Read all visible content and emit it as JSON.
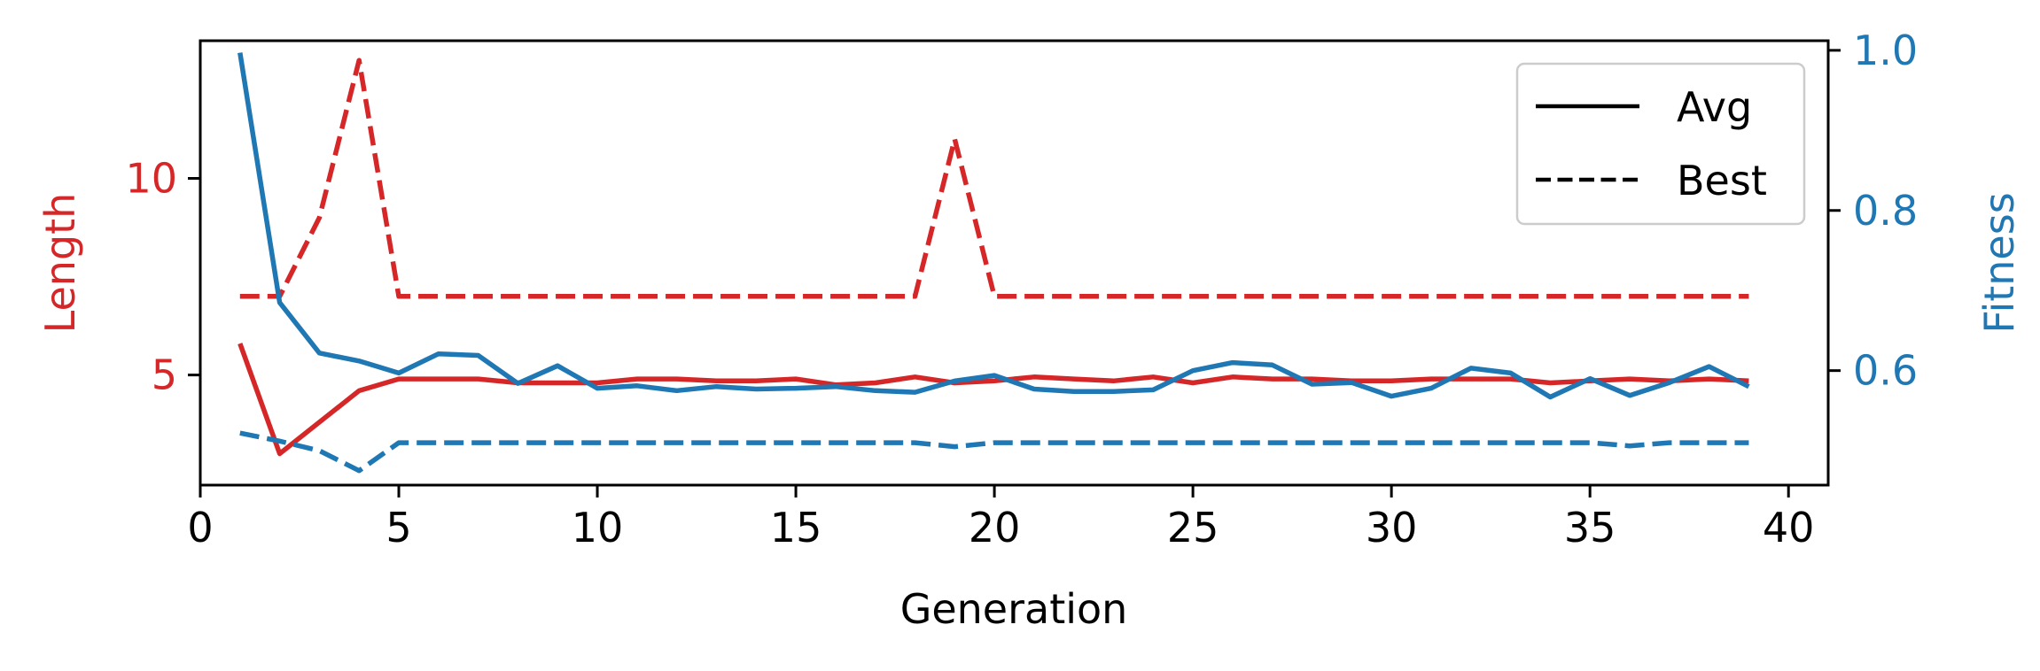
{
  "chart_data": {
    "type": "line",
    "title": "",
    "xlabel": "Generation",
    "ylabel_left": "Length",
    "ylabel_right": "Fitness",
    "xlim": [
      0,
      41
    ],
    "ylim_left": [
      2.2,
      13.5
    ],
    "ylim_right": [
      0.457,
      1.012
    ],
    "xticks": [
      0,
      5,
      10,
      15,
      20,
      25,
      30,
      35,
      40
    ],
    "yticks_left": [
      5,
      10
    ],
    "yticks_right": [
      0.6,
      0.8,
      1.0
    ],
    "ytick_labels_right": [
      "0.6",
      "0.8",
      "1.0"
    ],
    "legend": {
      "position": "top-right",
      "entries": [
        {
          "label": "Avg",
          "style": "solid"
        },
        {
          "label": "Best",
          "style": "dashed"
        }
      ]
    },
    "colors": {
      "length": "#d62728",
      "fitness": "#1f77b4"
    },
    "x": [
      1,
      2,
      3,
      4,
      5,
      6,
      7,
      8,
      9,
      10,
      11,
      12,
      13,
      14,
      15,
      16,
      17,
      18,
      19,
      20,
      21,
      22,
      23,
      24,
      25,
      26,
      27,
      28,
      29,
      30,
      31,
      32,
      33,
      34,
      35,
      36,
      37,
      38,
      39
    ],
    "series": [
      {
        "name": "Avg",
        "axis": "left",
        "color": "#d62728",
        "style": "solid",
        "values": [
          5.8,
          3.0,
          3.8,
          4.6,
          4.9,
          4.9,
          4.9,
          4.8,
          4.8,
          4.8,
          4.9,
          4.9,
          4.85,
          4.85,
          4.9,
          4.75,
          4.8,
          4.95,
          4.8,
          4.85,
          4.95,
          4.9,
          4.85,
          4.95,
          4.8,
          4.95,
          4.9,
          4.9,
          4.85,
          4.85,
          4.9,
          4.9,
          4.9,
          4.8,
          4.85,
          4.9,
          4.85,
          4.9,
          4.85
        ]
      },
      {
        "name": "Best",
        "axis": "left",
        "color": "#d62728",
        "style": "dashed",
        "values": [
          7,
          7,
          9,
          13,
          7,
          7,
          7,
          7,
          7,
          7,
          7,
          7,
          7,
          7,
          7,
          7,
          7,
          7,
          11,
          7,
          7,
          7,
          7,
          7,
          7,
          7,
          7,
          7,
          7,
          7,
          7,
          7,
          7,
          7,
          7,
          7,
          7,
          7,
          7
        ]
      },
      {
        "name": "Avg",
        "axis": "right",
        "color": "#1f77b4",
        "style": "solid",
        "values": [
          0.997,
          0.685,
          0.622,
          0.612,
          0.597,
          0.621,
          0.619,
          0.584,
          0.606,
          0.578,
          0.581,
          0.575,
          0.58,
          0.577,
          0.578,
          0.58,
          0.575,
          0.573,
          0.587,
          0.594,
          0.577,
          0.574,
          0.574,
          0.576,
          0.6,
          0.61,
          0.607,
          0.583,
          0.585,
          0.568,
          0.578,
          0.603,
          0.597,
          0.567,
          0.59,
          0.569,
          0.585,
          0.605,
          0.58
        ]
      },
      {
        "name": "Best",
        "axis": "right",
        "color": "#1f77b4",
        "style": "dashed",
        "values": [
          0.522,
          0.512,
          0.5,
          0.475,
          0.51,
          0.51,
          0.51,
          0.51,
          0.51,
          0.51,
          0.51,
          0.51,
          0.51,
          0.51,
          0.51,
          0.51,
          0.51,
          0.51,
          0.505,
          0.51,
          0.51,
          0.51,
          0.51,
          0.51,
          0.51,
          0.51,
          0.51,
          0.51,
          0.51,
          0.51,
          0.51,
          0.51,
          0.51,
          0.51,
          0.51,
          0.506,
          0.51,
          0.51,
          0.51
        ]
      }
    ]
  }
}
